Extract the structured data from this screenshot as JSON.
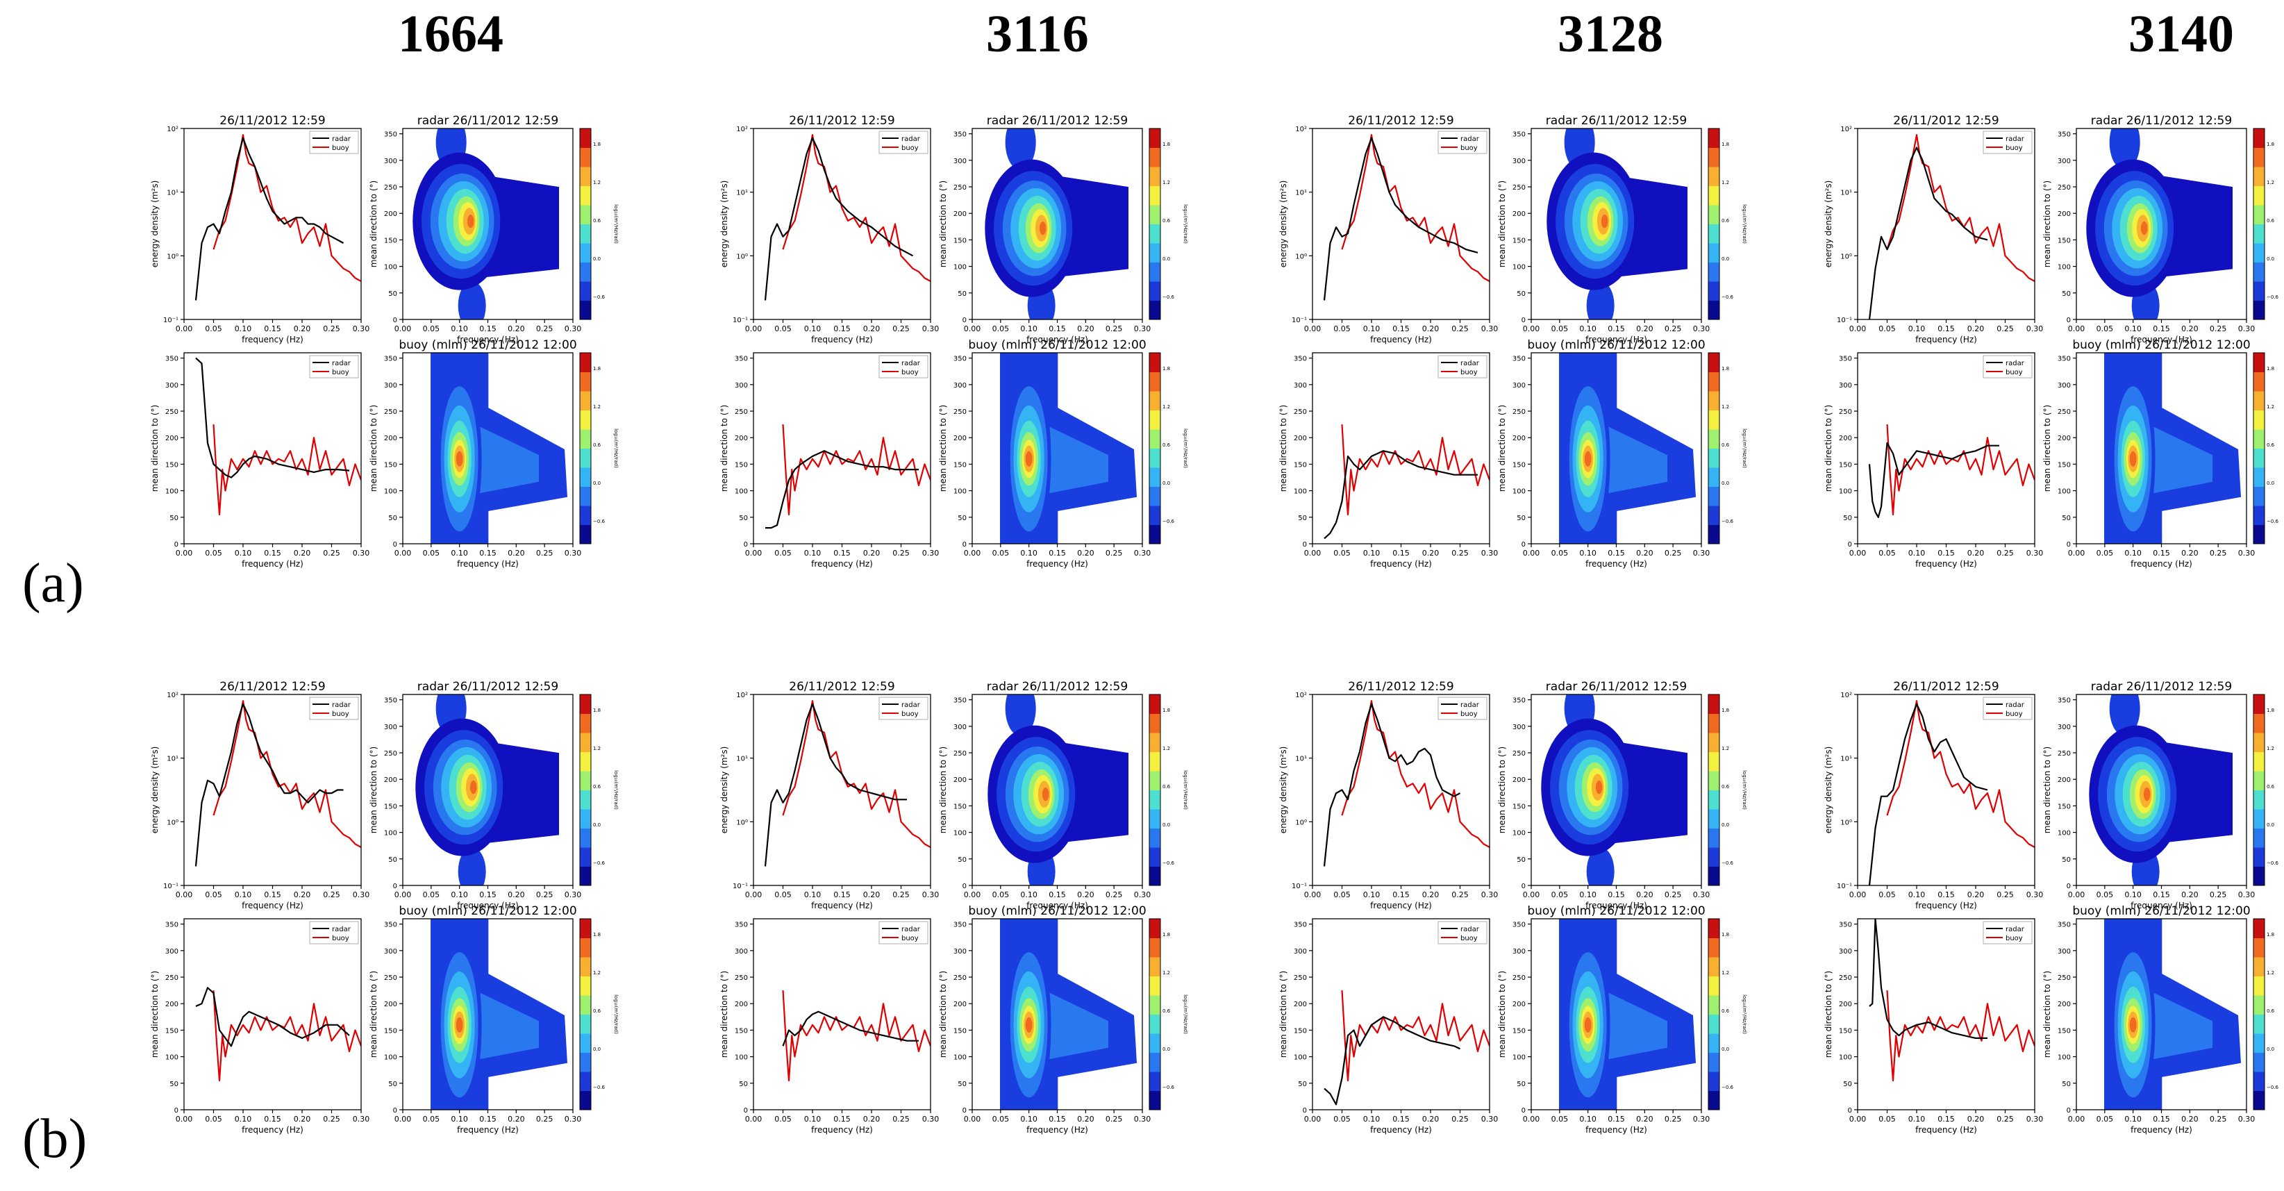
{
  "columns": [
    "1664",
    "3116",
    "3128",
    "3140"
  ],
  "row_labels": [
    "(a)",
    "(b)"
  ],
  "colors": {
    "radar": "#000000",
    "buoy": "#e00000"
  },
  "chart_data": {
    "type": "multi-panel",
    "panel_titles": {
      "spectrum": "26/11/2012 12:59",
      "radar_map": "radar 26/11/2012 12:59",
      "buoy_map": "buoy (mlm) 26/11/2012 12:00"
    },
    "labels": {
      "xlabel": "frequency (Hz)",
      "energy_ylabel": "energy density (m²s)",
      "direction_ylabel": "mean direction to (°)",
      "legend_radar": "radar",
      "legend_buoy": "buoy"
    },
    "x_ticks": [
      "0.00",
      "0.05",
      "0.10",
      "0.15",
      "0.20",
      "0.25",
      "0.30"
    ],
    "x_range": [
      0,
      0.3
    ],
    "energy_yticks": [
      "10⁻¹",
      "10⁰",
      "10¹",
      "10²"
    ],
    "energy_log_range": [
      -1,
      2
    ],
    "direction_yticks": [
      "0",
      "50",
      "100",
      "150",
      "200",
      "250",
      "300",
      "350"
    ],
    "direction_range": [
      0,
      360
    ],
    "colorbar_ticks": [
      "−0.6",
      "0.0",
      "0.6",
      "1.2",
      "1.8"
    ],
    "colorbar_label": "log₁₀(m²/Hz/rad)",
    "buoy_energy": {
      "f": [
        0.05,
        0.06,
        0.07,
        0.08,
        0.09,
        0.1,
        0.105,
        0.11,
        0.12,
        0.13,
        0.14,
        0.15,
        0.16,
        0.17,
        0.18,
        0.19,
        0.2,
        0.21,
        0.22,
        0.23,
        0.24,
        0.25,
        0.26,
        0.27,
        0.28,
        0.29,
        0.3
      ],
      "log10": [
        0.1,
        0.4,
        0.55,
        0.95,
        1.4,
        1.9,
        1.6,
        1.45,
        1.4,
        1.0,
        1.1,
        0.75,
        0.55,
        0.6,
        0.45,
        0.6,
        0.2,
        0.35,
        0.45,
        0.15,
        0.5,
        0.0,
        -0.1,
        -0.2,
        -0.25,
        -0.35,
        -0.4
      ]
    },
    "buoy_direction": {
      "f": [
        0.05,
        0.055,
        0.06,
        0.065,
        0.07,
        0.08,
        0.09,
        0.1,
        0.11,
        0.12,
        0.13,
        0.14,
        0.15,
        0.16,
        0.17,
        0.18,
        0.19,
        0.2,
        0.21,
        0.22,
        0.23,
        0.24,
        0.25,
        0.26,
        0.27,
        0.28,
        0.29,
        0.3
      ],
      "deg": [
        225,
        130,
        55,
        140,
        100,
        160,
        140,
        160,
        145,
        175,
        150,
        175,
        150,
        160,
        155,
        175,
        140,
        160,
        130,
        200,
        140,
        175,
        130,
        145,
        160,
        110,
        150,
        120
      ]
    },
    "panels": [
      {
        "id": "a-1664",
        "radar_energy": {
          "f": [
            0.02,
            0.03,
            0.04,
            0.05,
            0.06,
            0.07,
            0.08,
            0.09,
            0.1,
            0.11,
            0.12,
            0.13,
            0.14,
            0.15,
            0.16,
            0.17,
            0.18,
            0.19,
            0.2,
            0.21,
            0.22,
            0.23,
            0.24,
            0.25,
            0.26,
            0.27
          ],
          "log10": [
            -0.7,
            0.2,
            0.45,
            0.5,
            0.35,
            0.7,
            1.0,
            1.5,
            1.85,
            1.6,
            1.4,
            1.15,
            0.9,
            0.7,
            0.6,
            0.5,
            0.55,
            0.6,
            0.6,
            0.5,
            0.5,
            0.45,
            0.35,
            0.3,
            0.25,
            0.2
          ]
        },
        "radar_direction": {
          "f": [
            0.02,
            0.03,
            0.04,
            0.05,
            0.06,
            0.07,
            0.08,
            0.09,
            0.1,
            0.11,
            0.12,
            0.14,
            0.16,
            0.18,
            0.2,
            0.22,
            0.24,
            0.26,
            0.28
          ],
          "deg": [
            350,
            340,
            190,
            150,
            140,
            130,
            125,
            135,
            150,
            160,
            165,
            160,
            150,
            145,
            140,
            135,
            140,
            140,
            138
          ]
        }
      },
      {
        "id": "a-3116",
        "radar_energy": {
          "f": [
            0.02,
            0.03,
            0.04,
            0.05,
            0.06,
            0.07,
            0.08,
            0.09,
            0.1,
            0.11,
            0.12,
            0.13,
            0.14,
            0.15,
            0.16,
            0.18,
            0.2,
            0.22,
            0.24,
            0.26,
            0.27
          ],
          "log10": [
            -0.7,
            0.3,
            0.5,
            0.3,
            0.4,
            0.8,
            1.2,
            1.6,
            1.85,
            1.65,
            1.35,
            1.1,
            0.9,
            0.8,
            0.7,
            0.55,
            0.45,
            0.3,
            0.15,
            0.05,
            0.0
          ]
        },
        "radar_direction": {
          "f": [
            0.02,
            0.03,
            0.04,
            0.05,
            0.06,
            0.07,
            0.08,
            0.1,
            0.12,
            0.14,
            0.16,
            0.18,
            0.2,
            0.22,
            0.24,
            0.26,
            0.28
          ],
          "deg": [
            30,
            30,
            35,
            80,
            120,
            140,
            150,
            165,
            175,
            165,
            155,
            150,
            145,
            145,
            140,
            140,
            140
          ]
        }
      },
      {
        "id": "a-3128",
        "radar_energy": {
          "f": [
            0.02,
            0.03,
            0.04,
            0.05,
            0.06,
            0.07,
            0.08,
            0.09,
            0.1,
            0.11,
            0.12,
            0.13,
            0.14,
            0.15,
            0.16,
            0.18,
            0.2,
            0.22,
            0.24,
            0.26,
            0.28
          ],
          "log10": [
            -0.7,
            0.2,
            0.45,
            0.3,
            0.35,
            0.8,
            1.2,
            1.6,
            1.85,
            1.6,
            1.3,
            1.0,
            0.8,
            0.7,
            0.6,
            0.45,
            0.35,
            0.25,
            0.2,
            0.1,
            0.05
          ]
        },
        "radar_direction": {
          "f": [
            0.02,
            0.03,
            0.04,
            0.05,
            0.06,
            0.07,
            0.08,
            0.1,
            0.12,
            0.14,
            0.16,
            0.18,
            0.2,
            0.22,
            0.24,
            0.26,
            0.28
          ],
          "deg": [
            10,
            20,
            40,
            80,
            165,
            150,
            140,
            165,
            175,
            170,
            155,
            145,
            140,
            135,
            130,
            130,
            130
          ]
        }
      },
      {
        "id": "a-3140",
        "radar_energy": {
          "f": [
            0.02,
            0.03,
            0.04,
            0.05,
            0.06,
            0.07,
            0.08,
            0.09,
            0.1,
            0.11,
            0.12,
            0.13,
            0.14,
            0.15,
            0.16,
            0.18,
            0.2,
            0.22
          ],
          "log10": [
            -1.0,
            -0.2,
            0.3,
            0.1,
            0.3,
            0.7,
            1.1,
            1.5,
            1.7,
            1.5,
            1.2,
            0.9,
            0.8,
            0.7,
            0.65,
            0.45,
            0.3,
            0.25
          ]
        },
        "radar_direction": {
          "f": [
            0.02,
            0.025,
            0.03,
            0.035,
            0.04,
            0.05,
            0.06,
            0.07,
            0.08,
            0.1,
            0.12,
            0.14,
            0.16,
            0.18,
            0.2,
            0.22,
            0.24
          ],
          "deg": [
            150,
            80,
            60,
            50,
            70,
            190,
            170,
            130,
            145,
            175,
            170,
            165,
            160,
            170,
            175,
            185,
            185
          ]
        }
      },
      {
        "id": "b-1664",
        "radar_energy": {
          "f": [
            0.02,
            0.03,
            0.04,
            0.05,
            0.06,
            0.07,
            0.08,
            0.09,
            0.1,
            0.11,
            0.12,
            0.13,
            0.14,
            0.15,
            0.16,
            0.17,
            0.18,
            0.19,
            0.2,
            0.21,
            0.22,
            0.23,
            0.24,
            0.25,
            0.26,
            0.27
          ],
          "log10": [
            -0.7,
            0.3,
            0.65,
            0.6,
            0.4,
            0.75,
            1.1,
            1.55,
            1.85,
            1.65,
            1.35,
            1.1,
            0.95,
            0.8,
            0.6,
            0.45,
            0.45,
            0.5,
            0.4,
            0.3,
            0.4,
            0.5,
            0.45,
            0.45,
            0.5,
            0.5
          ]
        },
        "radar_direction": {
          "f": [
            0.02,
            0.03,
            0.04,
            0.05,
            0.06,
            0.07,
            0.08,
            0.09,
            0.1,
            0.11,
            0.12,
            0.14,
            0.16,
            0.18,
            0.2,
            0.22,
            0.24,
            0.26,
            0.28
          ],
          "deg": [
            195,
            200,
            230,
            220,
            150,
            135,
            120,
            150,
            175,
            185,
            180,
            170,
            160,
            145,
            135,
            145,
            160,
            160,
            140
          ]
        }
      },
      {
        "id": "b-3116",
        "radar_energy": {
          "f": [
            0.02,
            0.03,
            0.04,
            0.05,
            0.06,
            0.07,
            0.08,
            0.09,
            0.1,
            0.11,
            0.12,
            0.13,
            0.14,
            0.15,
            0.16,
            0.18,
            0.2,
            0.22,
            0.24,
            0.26
          ],
          "log10": [
            -0.7,
            0.3,
            0.5,
            0.3,
            0.45,
            0.8,
            1.2,
            1.6,
            1.85,
            1.6,
            1.3,
            1.0,
            0.85,
            0.75,
            0.6,
            0.5,
            0.45,
            0.4,
            0.35,
            0.35
          ]
        },
        "radar_direction": {
          "f": [
            0.05,
            0.06,
            0.07,
            0.08,
            0.09,
            0.1,
            0.11,
            0.12,
            0.14,
            0.16,
            0.18,
            0.2,
            0.22,
            0.24,
            0.26,
            0.28
          ],
          "deg": [
            120,
            150,
            140,
            150,
            170,
            180,
            185,
            180,
            170,
            160,
            150,
            145,
            140,
            135,
            130,
            130
          ]
        }
      },
      {
        "id": "b-3128",
        "radar_energy": {
          "f": [
            0.02,
            0.03,
            0.04,
            0.05,
            0.06,
            0.07,
            0.08,
            0.09,
            0.1,
            0.11,
            0.12,
            0.13,
            0.14,
            0.15,
            0.16,
            0.17,
            0.18,
            0.19,
            0.2,
            0.21,
            0.22,
            0.23,
            0.24,
            0.25
          ],
          "log10": [
            -0.7,
            0.2,
            0.45,
            0.5,
            0.35,
            0.8,
            1.1,
            1.55,
            1.85,
            1.6,
            1.3,
            1.0,
            0.95,
            1.05,
            0.9,
            0.95,
            1.1,
            1.15,
            1.05,
            0.7,
            0.5,
            0.45,
            0.4,
            0.45
          ]
        },
        "radar_direction": {
          "f": [
            0.02,
            0.03,
            0.04,
            0.05,
            0.06,
            0.07,
            0.08,
            0.1,
            0.12,
            0.14,
            0.16,
            0.18,
            0.2,
            0.22,
            0.24,
            0.25
          ],
          "deg": [
            40,
            30,
            10,
            60,
            140,
            150,
            120,
            160,
            175,
            165,
            150,
            140,
            130,
            125,
            120,
            115
          ]
        }
      },
      {
        "id": "b-3140",
        "radar_energy": {
          "f": [
            0.02,
            0.03,
            0.04,
            0.05,
            0.06,
            0.07,
            0.08,
            0.09,
            0.1,
            0.11,
            0.12,
            0.13,
            0.14,
            0.15,
            0.16,
            0.17,
            0.18,
            0.2,
            0.22
          ],
          "log10": [
            -1.0,
            -0.1,
            0.4,
            0.4,
            0.5,
            0.9,
            1.3,
            1.6,
            1.85,
            1.65,
            1.3,
            1.1,
            1.25,
            1.3,
            1.1,
            0.9,
            0.7,
            0.55,
            0.5
          ]
        },
        "radar_direction": {
          "f": [
            0.02,
            0.025,
            0.03,
            0.035,
            0.04,
            0.05,
            0.06,
            0.07,
            0.08,
            0.1,
            0.12,
            0.14,
            0.16,
            0.18,
            0.2,
            0.22
          ],
          "deg": [
            195,
            200,
            360,
            300,
            230,
            170,
            150,
            140,
            150,
            160,
            165,
            155,
            145,
            140,
            135,
            135
          ]
        }
      }
    ]
  }
}
